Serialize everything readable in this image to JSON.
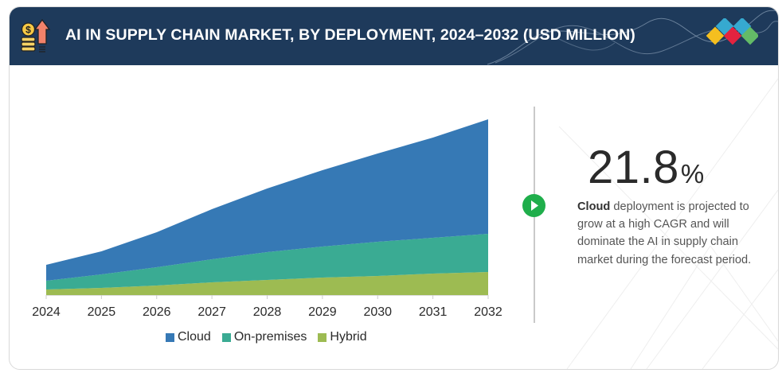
{
  "header": {
    "title": "AI IN SUPPLY CHAIN MARKET, BY DEPLOYMENT, 2024–2032 (USD MILLION)",
    "left_icon": "money-growth-icon",
    "right_logo": "brand-diamonds-logo"
  },
  "highlight": {
    "value": "21.8",
    "unit": "%",
    "bold_lead": "Cloud",
    "description": " deployment is projected to grow at a high CAGR and will dominate the AI in supply chain market during the forecast period.",
    "marker_icon": "play-icon"
  },
  "colors": {
    "header_bg": "#1e3a5b",
    "cloud": "#3679b5",
    "on_premises": "#3aab93",
    "hybrid": "#9dbb52",
    "play": "#1fae4b"
  },
  "chart_data": {
    "type": "area",
    "stacked": true,
    "title": "AI IN SUPPLY CHAIN MARKET, BY DEPLOYMENT, 2024–2032 (USD MILLION)",
    "xlabel": "",
    "ylabel": "",
    "y_axis_shown": false,
    "values_note": "relative (no y-axis shown); estimated from shape",
    "categories": [
      "2024",
      "2025",
      "2026",
      "2027",
      "2028",
      "2029",
      "2030",
      "2031",
      "2032"
    ],
    "series": [
      {
        "name": "Hybrid",
        "color": "#9dbb52",
        "values": [
          7,
          9,
          12,
          16,
          19,
          22,
          24,
          27,
          29
        ]
      },
      {
        "name": "On-premises",
        "color": "#3aab93",
        "values": [
          11,
          17,
          23,
          29,
          35,
          39,
          43,
          45,
          48
        ]
      },
      {
        "name": "Cloud",
        "color": "#3679b5",
        "values": [
          20,
          29,
          44,
          63,
          80,
          96,
          111,
          126,
          144
        ]
      }
    ],
    "ylim": [
      0,
      221
    ],
    "grid": false,
    "legend": {
      "position": "bottom",
      "entries": [
        "Cloud",
        "On-premises",
        "Hybrid"
      ]
    }
  }
}
